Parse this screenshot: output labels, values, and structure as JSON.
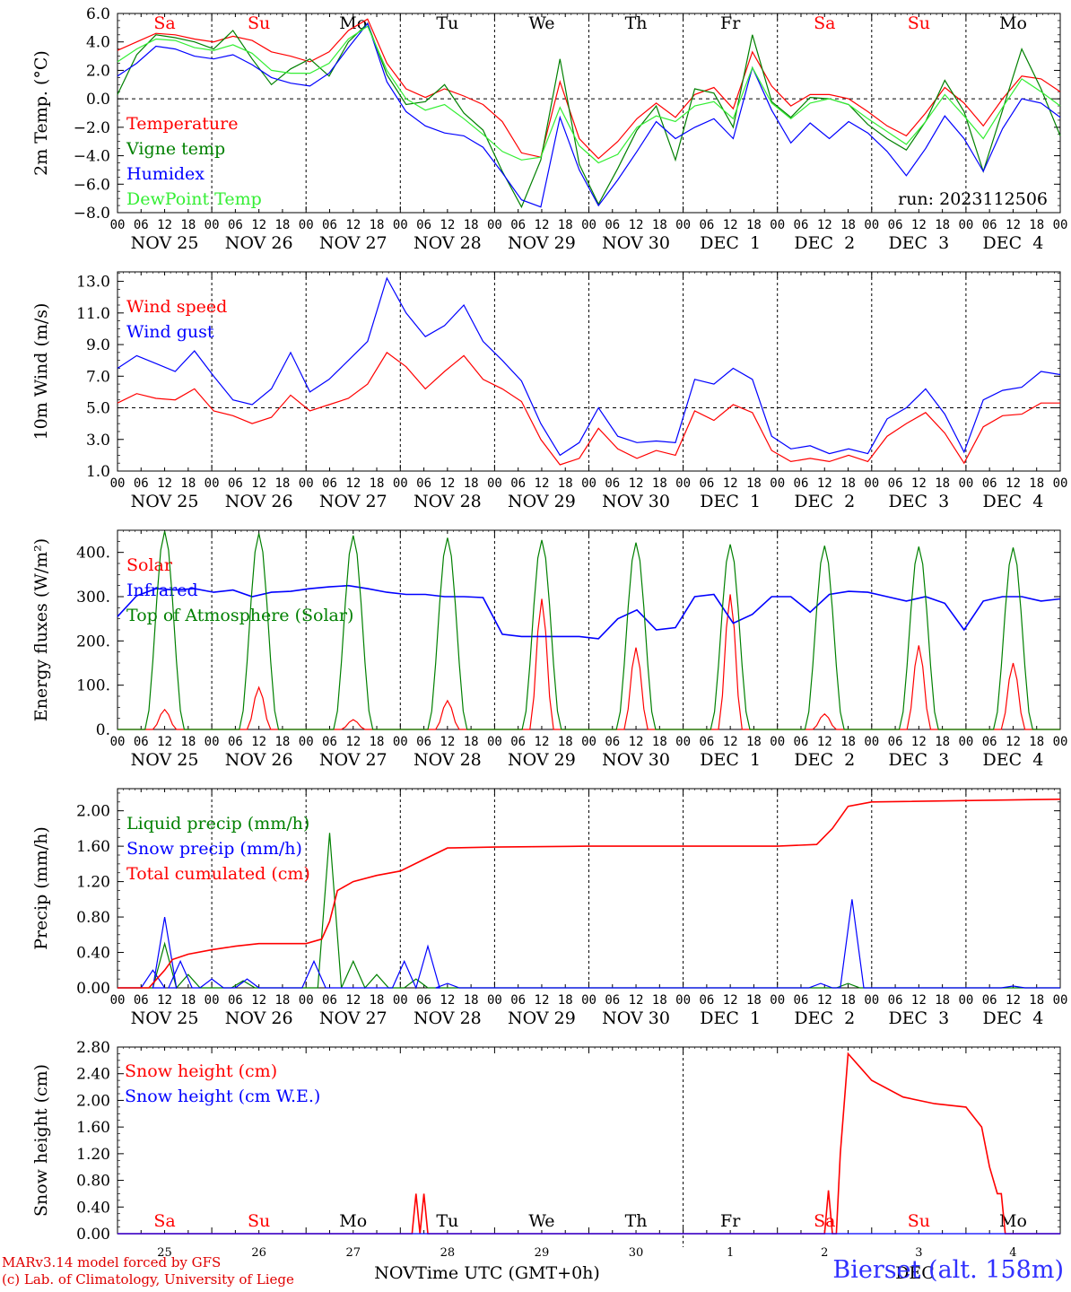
{
  "footer": {
    "credit_line1": "MARv3.14 model forced by GFS",
    "credit_line2": "(c) Lab. of Climatology, University of Liege",
    "station": "Bierset (alt. 158m)",
    "xaxis_label": "Time UTC (GMT+0h)",
    "month_left": "NOV",
    "month_right": "DEC"
  },
  "colors": {
    "red": "#ff0000",
    "green": "#008000",
    "blue": "#0000ff",
    "lightgreen": "#33ee33",
    "purple": "#800080"
  },
  "time_axis": {
    "day_labels": [
      "NOV 25",
      "NOV 26",
      "NOV 27",
      "NOV 28",
      "NOV 29",
      "NOV 30",
      "DEC  1",
      "DEC  2",
      "DEC  3",
      "DEC  4"
    ],
    "hour_labels": [
      "00",
      "06",
      "12",
      "18"
    ],
    "weekday_labels": [
      "Sa",
      "Su",
      "Mo",
      "Tu",
      "We",
      "Th",
      "Fr",
      "Sa",
      "Su",
      "Mo"
    ],
    "weekday_colors": [
      "#ff0000",
      "#ff0000",
      "#000000",
      "#000000",
      "#000000",
      "#000000",
      "#000000",
      "#ff0000",
      "#ff0000",
      "#000000"
    ],
    "bottom_day_numbers": [
      "25",
      "26",
      "27",
      "28",
      "29",
      "30",
      "1",
      "2",
      "3",
      "4"
    ],
    "xlim_hours": [
      0,
      240
    ]
  },
  "chart_data": [
    {
      "type": "line",
      "id": "temperature",
      "ylabel": "2m Temp. (°C)",
      "ylim": [
        -8,
        6
      ],
      "yticks": [
        "6.0",
        "4.0",
        "2.0",
        "0.0",
        "−2.0",
        "−4.0",
        "−6.0",
        "−8.0"
      ],
      "yticks_values": [
        6,
        4,
        2,
        0,
        -2,
        -4,
        -6,
        -8
      ],
      "ref_line": 0,
      "run_label": "run: 2023112506",
      "x_step_hours": 6,
      "series": [
        {
          "name": "Temperature",
          "color": "#ff0000",
          "values": [
            3.4,
            4.0,
            4.6,
            4.5,
            4.2,
            4.0,
            4.4,
            4.1,
            3.3,
            3.0,
            2.6,
            3.3,
            4.8,
            5.6,
            2.5,
            0.7,
            0.1,
            0.7,
            0.2,
            -0.4,
            -1.6,
            -3.8,
            -4.1,
            1.2,
            -2.8,
            -4.2,
            -3.0,
            -1.4,
            -0.3,
            -1.3,
            0.3,
            0.8,
            -0.7,
            3.3,
            0.9,
            -0.5,
            0.3,
            0.3,
            0.0,
            -0.9,
            -1.9,
            -2.6,
            -1.0,
            0.8,
            -0.3,
            -1.9,
            0.0,
            1.6,
            1.4,
            0.5
          ]
        },
        {
          "name": "Vigne temp",
          "color": "#008000",
          "values": [
            0.3,
            3.1,
            4.5,
            4.3,
            4.0,
            3.5,
            4.8,
            2.8,
            1.0,
            2.1,
            2.8,
            1.6,
            4.0,
            5.3,
            1.7,
            -0.4,
            -0.2,
            1.0,
            -1.0,
            -2.2,
            -5.1,
            -7.6,
            -4.3,
            2.8,
            -4.6,
            -7.4,
            -4.9,
            -2.2,
            -0.5,
            -4.3,
            0.7,
            0.4,
            -2.0,
            4.5,
            -0.2,
            -1.3,
            0.1,
            0.0,
            -0.4,
            -1.8,
            -2.8,
            -3.6,
            -1.6,
            1.3,
            -0.9,
            -5.1,
            -0.8,
            3.5,
            0.7,
            -2.6
          ]
        },
        {
          "name": "Humidex",
          "color": "#0000ff",
          "values": [
            1.6,
            2.5,
            3.7,
            3.5,
            3.0,
            2.8,
            3.1,
            2.4,
            1.5,
            1.1,
            0.9,
            1.8,
            3.6,
            5.3,
            1.2,
            -0.9,
            -1.9,
            -2.4,
            -2.6,
            -3.4,
            -5.2,
            -7.1,
            -7.6,
            -1.3,
            -5.0,
            -7.5,
            -5.7,
            -3.7,
            -1.6,
            -2.8,
            -2.0,
            -1.4,
            -2.8,
            2.2,
            -0.8,
            -3.1,
            -1.7,
            -2.8,
            -1.6,
            -2.4,
            -3.7,
            -5.4,
            -3.5,
            -1.2,
            -2.8,
            -5.1,
            -2.1,
            0.0,
            -0.3,
            -1.3
          ]
        },
        {
          "name": "DewPoint Temp",
          "color": "#33ee33",
          "values": [
            2.6,
            3.5,
            4.2,
            4.1,
            3.6,
            3.4,
            3.8,
            3.2,
            2.0,
            1.8,
            1.8,
            2.5,
            4.2,
            5.1,
            2.0,
            0.0,
            -0.8,
            -0.4,
            -1.4,
            -2.5,
            -3.7,
            -4.3,
            -4.1,
            -0.6,
            -3.3,
            -4.5,
            -3.9,
            -2.0,
            -1.2,
            -1.6,
            -0.5,
            -0.2,
            -1.4,
            2.2,
            -0.3,
            -1.4,
            -0.3,
            0.0,
            -0.4,
            -1.4,
            -2.3,
            -3.2,
            -1.6,
            0.3,
            -1.2,
            -2.8,
            -0.6,
            1.4,
            0.5,
            -0.5
          ]
        }
      ]
    },
    {
      "type": "line",
      "id": "wind",
      "ylabel": "10m Wind (m/s)",
      "ylim": [
        1,
        13.6
      ],
      "yticks": [
        "13.0",
        "11.0",
        "9.0",
        "7.0",
        "5.0",
        "3.0",
        "1.0"
      ],
      "yticks_values": [
        13,
        11,
        9,
        7,
        5,
        3,
        1
      ],
      "ref_line": 5,
      "x_step_hours": 6,
      "series": [
        {
          "name": "Wind speed",
          "color": "#ff0000",
          "values": [
            5.3,
            5.9,
            5.6,
            5.5,
            6.2,
            4.8,
            4.5,
            4.0,
            4.4,
            5.8,
            4.8,
            5.2,
            5.6,
            6.5,
            8.5,
            7.6,
            6.2,
            7.3,
            8.3,
            6.8,
            6.2,
            5.4,
            3.0,
            1.4,
            1.8,
            3.7,
            2.4,
            1.8,
            2.3,
            2.0,
            4.8,
            4.2,
            5.2,
            4.7,
            2.3,
            1.6,
            1.8,
            1.6,
            2.0,
            1.6,
            3.2,
            4.0,
            4.7,
            3.4,
            1.5,
            3.8,
            4.5,
            4.6,
            5.3,
            5.3
          ]
        },
        {
          "name": "Wind gust",
          "color": "#0000ff",
          "values": [
            7.5,
            8.3,
            7.8,
            7.3,
            8.6,
            7.0,
            5.5,
            5.2,
            6.2,
            8.5,
            6.0,
            6.8,
            8.0,
            9.2,
            13.2,
            11.0,
            9.5,
            10.2,
            11.5,
            9.2,
            8.0,
            6.7,
            4.0,
            2.0,
            2.8,
            5.0,
            3.2,
            2.8,
            2.9,
            2.8,
            6.8,
            6.5,
            7.5,
            6.8,
            3.2,
            2.4,
            2.6,
            2.1,
            2.4,
            2.1,
            4.3,
            5.0,
            6.2,
            4.6,
            2.2,
            5.5,
            6.1,
            6.3,
            7.3,
            7.1
          ]
        }
      ]
    },
    {
      "type": "line",
      "id": "energy",
      "ylabel": "Energy fluxes (W/m²)",
      "ylim": [
        0,
        450
      ],
      "yticks": [
        "400.",
        "300.",
        "200.",
        "100.",
        "0."
      ],
      "yticks_values": [
        400,
        300,
        200,
        100,
        0
      ],
      "series": [
        {
          "name": "Solar",
          "color": "#ff0000",
          "peaks": [
            45,
            95,
            22,
            65,
            295,
            185,
            305,
            35,
            190,
            150
          ]
        },
        {
          "name": "Infrared",
          "color": "#0000ff",
          "x_step_hours": 6,
          "values": [
            255,
            302,
            318,
            315,
            318,
            310,
            315,
            300,
            310,
            312,
            318,
            322,
            325,
            318,
            310,
            305,
            305,
            300,
            300,
            298,
            215,
            210,
            210,
            210,
            210,
            205,
            250,
            270,
            225,
            230,
            300,
            305,
            240,
            260,
            300,
            300,
            265,
            305,
            312,
            310,
            300,
            290,
            300,
            285,
            225,
            290,
            300,
            300,
            290,
            295
          ]
        },
        {
          "name": "Top of Atmosphere (Solar)",
          "color": "#008000",
          "peaks": [
            448,
            443,
            438,
            433,
            428,
            422,
            418,
            415,
            413,
            411
          ]
        }
      ]
    },
    {
      "type": "line",
      "id": "precip",
      "ylabel": "Precip (mm/h)",
      "ylim": [
        0,
        2.25
      ],
      "yticks": [
        "2.00",
        "1.60",
        "1.20",
        "0.80",
        "0.40",
        "0.00"
      ],
      "yticks_values": [
        2.0,
        1.6,
        1.2,
        0.8,
        0.4,
        0.0
      ],
      "series": [
        {
          "name": "Liquid precip (mm/h)",
          "color": "#008000",
          "peaks": [
            [
              12,
              0.5
            ],
            [
              18,
              0.15
            ],
            [
              32,
              0.08
            ],
            [
              54,
              1.75
            ],
            [
              60,
              0.3
            ],
            [
              66,
              0.15
            ],
            [
              76,
              0.1
            ],
            [
              186,
              0.05
            ]
          ]
        },
        {
          "name": "Snow precip (mm/h)",
          "color": "#0000ff",
          "peaks": [
            [
              9,
              0.2
            ],
            [
              12,
              0.8
            ],
            [
              16,
              0.3
            ],
            [
              24,
              0.1
            ],
            [
              33,
              0.1
            ],
            [
              50,
              0.3
            ],
            [
              73,
              0.3
            ],
            [
              79,
              0.47
            ],
            [
              84,
              0.05
            ],
            [
              179,
              0.05
            ],
            [
              187,
              1.0
            ],
            [
              228,
              0.02
            ]
          ]
        },
        {
          "name": "Total cumulated (cm)",
          "color": "#ff0000",
          "x_hours": [
            0,
            8,
            12,
            14,
            18,
            24,
            30,
            36,
            48,
            52,
            54,
            56,
            60,
            66,
            72,
            78,
            84,
            96,
            120,
            168,
            178,
            182,
            186,
            192,
            240
          ],
          "values": [
            0,
            0,
            0.2,
            0.32,
            0.38,
            0.43,
            0.47,
            0.5,
            0.5,
            0.55,
            0.75,
            1.1,
            1.2,
            1.27,
            1.32,
            1.45,
            1.58,
            1.59,
            1.6,
            1.6,
            1.62,
            1.8,
            2.05,
            2.1,
            2.13
          ]
        }
      ]
    },
    {
      "type": "line",
      "id": "snow",
      "ylabel": "Snow height (cm)",
      "ylim": [
        0,
        2.8
      ],
      "yticks": [
        "2.80",
        "2.40",
        "2.00",
        "1.60",
        "1.20",
        "0.80",
        "0.40",
        "0.00"
      ],
      "yticks_values": [
        2.8,
        2.4,
        2.0,
        1.6,
        1.2,
        0.8,
        0.4,
        0.0
      ],
      "series": [
        {
          "name": "Snow height (cm)",
          "color": "#ff0000",
          "x_hours": [
            0,
            75,
            76,
            77,
            78,
            79,
            80,
            81,
            82,
            180,
            181,
            182,
            183,
            184,
            186,
            189,
            192,
            200,
            208,
            216,
            220,
            222,
            224,
            225,
            226,
            240
          ],
          "values": [
            0,
            0,
            0.6,
            0,
            0.6,
            0,
            0,
            0,
            0,
            0,
            0.65,
            0,
            0,
            1.2,
            2.7,
            2.5,
            2.3,
            2.05,
            1.95,
            1.9,
            1.6,
            1.0,
            0.6,
            0.6,
            0,
            0
          ]
        },
        {
          "name": "Snow height (cm W.E.)",
          "color": "#0000ff",
          "x_hours": [
            0,
            240
          ],
          "values": [
            0,
            0
          ]
        }
      ]
    }
  ]
}
